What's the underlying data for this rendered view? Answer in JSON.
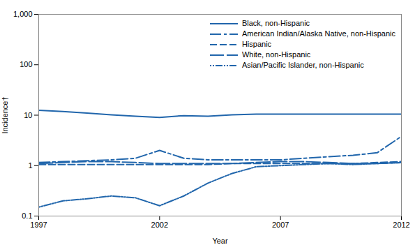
{
  "chart_data": {
    "type": "line",
    "xlabel": "Year",
    "ylabel": "Incidence†",
    "x": [
      1997,
      1998,
      1999,
      2000,
      2001,
      2002,
      2003,
      2004,
      2005,
      2006,
      2007,
      2008,
      2009,
      2010,
      2011,
      2012
    ],
    "series": [
      {
        "name": "Black, non-Hispanic",
        "color": "#2166ac",
        "line_style": "solid",
        "values": [
          12.5,
          11.8,
          11.0,
          10.2,
          9.5,
          9.0,
          9.8,
          9.5,
          10.2,
          10.5,
          10.5,
          10.5,
          10.5,
          10.5,
          10.5,
          10.5
        ]
      },
      {
        "name": "American Indian/Alaska Native, non-Hispanic",
        "color": "#2166ac",
        "line_style": "dashdot",
        "values": [
          1.15,
          1.2,
          1.25,
          1.3,
          1.4,
          2.0,
          1.4,
          1.3,
          1.3,
          1.3,
          1.3,
          1.4,
          1.5,
          1.6,
          1.8,
          3.8
        ]
      },
      {
        "name": "Hispanic",
        "color": "#2166ac",
        "line_style": "dashed",
        "values": [
          1.05,
          1.05,
          1.05,
          1.05,
          1.05,
          1.05,
          1.05,
          1.05,
          1.1,
          1.1,
          1.1,
          1.1,
          1.1,
          1.1,
          1.15,
          1.2
        ]
      },
      {
        "name": "White, non-Hispanic",
        "color": "#2166ac",
        "line_style": "longdash",
        "values": [
          1.1,
          1.15,
          1.2,
          1.2,
          1.15,
          1.1,
          1.1,
          1.1,
          1.1,
          1.15,
          1.2,
          1.2,
          1.15,
          1.1,
          1.1,
          1.15
        ]
      },
      {
        "name": "Asian/Pacific Islander, non-Hispanic",
        "color": "#2166ac",
        "line_style": "dotdotdash",
        "values": [
          0.15,
          0.2,
          0.22,
          0.25,
          0.23,
          0.16,
          0.25,
          0.45,
          0.7,
          0.95,
          1.0,
          1.05,
          1.1,
          1.05,
          1.1,
          1.15
        ]
      }
    ],
    "xlim": [
      1997,
      2012
    ],
    "xticks": [
      1997,
      2002,
      2007,
      2012
    ],
    "ylim": [
      0.1,
      1000
    ],
    "yticks": [
      0.1,
      1,
      10,
      100,
      {
        "value": 1000,
        "label": "1,000"
      }
    ],
    "log": "y",
    "grid": false,
    "legend": "upper right"
  }
}
